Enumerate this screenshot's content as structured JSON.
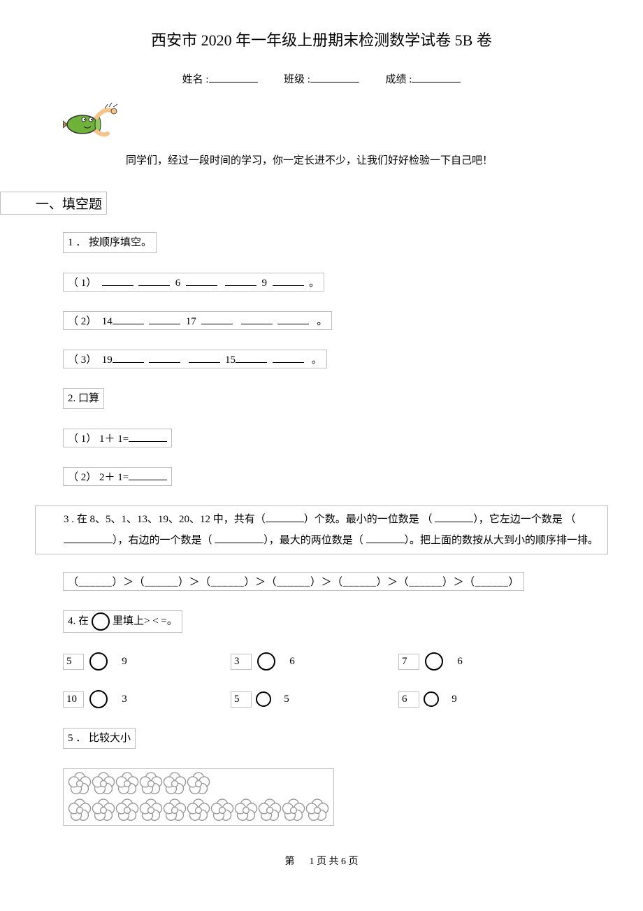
{
  "title": "西安市 2020 年一年级上册期末检测数学试卷   5B 卷",
  "meta": {
    "name_label": "姓名 :",
    "class_label": "班级 :",
    "score_label": "成绩 :"
  },
  "intro": "同学们，经过一段时间的学习，你一定长进不少，让我们好好检验一下自己吧！",
  "section1": "一、填空题",
  "q1": {
    "label": "1 ．  按顺序填空。",
    "s1_prefix": "（ 1）",
    "s1_mid1": "6",
    "s1_mid2": "9",
    "s1_end": "。",
    "s2_prefix": "（ 2）",
    "s2_a": "14",
    "s2_b": "17",
    "s2_end": "。",
    "s3_prefix": "（ 3）",
    "s3_a": "19",
    "s3_b": "15",
    "s3_end": "。"
  },
  "q2": {
    "label": "2.     口算",
    "s1": "（ 1） 1＋ 1=",
    "s2": "（ 2） 2＋ 1="
  },
  "q3": {
    "line1a": "3 . 在 8、5、1、13、19、20、12 中，共有（",
    "line1b": "）个数。最小的一位数是 （",
    "line1c": "），它左边一个数是 （",
    "line2a": "），右边的一个数是（",
    "line2b": "），最大的两位数是（",
    "line2c": "）。把上面的数按从大到小的顺序排一排。",
    "chain": "（______）＞（______）＞（______）＞（______）＞（______）＞（______）＞（______）"
  },
  "q4": {
    "label_a": "4.     在",
    "label_b": "里填上>     <     =。",
    "row1": [
      {
        "l": "5",
        "r": "9"
      },
      {
        "l": "3",
        "r": "6"
      },
      {
        "l": "7",
        "r": "6"
      }
    ],
    "row2": [
      {
        "l": "10",
        "r": "3"
      },
      {
        "l": "5",
        "r": "5"
      },
      {
        "l": "6",
        "r": "9"
      }
    ]
  },
  "q5": {
    "label": "5 ．  比较大小",
    "row1_count": 6,
    "row2_count": 11
  },
  "footer": {
    "a": "第",
    "b": "1 页 共 6 页"
  },
  "style": {
    "flower_stroke": "#9a9a9a",
    "flower_size": 34,
    "pencil_colors": {
      "body": "#6fb23a",
      "tip": "#c98b4a",
      "hand": "#f4c48a",
      "outline": "#333333"
    }
  }
}
